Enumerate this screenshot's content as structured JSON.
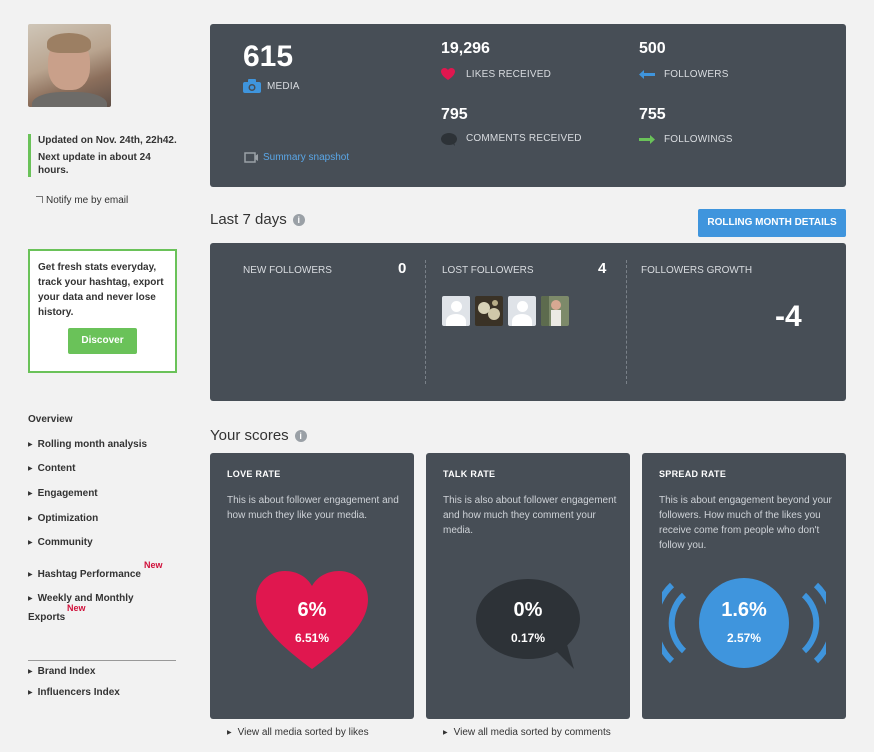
{
  "sidebar": {
    "update_line1": "Updated on Nov. 24th, 22h42.",
    "update_line2": "Next update in about 24 hours.",
    "notify_label": "Notify me by email",
    "promo_text": "Get fresh stats everyday, track your hashtag, export your data and never lose history.",
    "promo_button": "Discover",
    "nav_title": "Overview",
    "nav_items": [
      "Rolling month analysis",
      "Content",
      "Engagement",
      "Optimization",
      "Community",
      "Hashtag Performance",
      "Weekly and Monthly",
      "Exports",
      "Brand Index",
      "Influencers Index"
    ],
    "new_badge": "New"
  },
  "stats": {
    "media_count": "615",
    "media_label": "MEDIA",
    "likes_count": "19,296",
    "likes_label": "LIKES RECEIVED",
    "comments_count": "795",
    "comments_label": "COMMENTS RECEIVED",
    "followers_count": "500",
    "followers_label": "FOLLOWERS",
    "followings_count": "755",
    "followings_label": "FOLLOWINGS",
    "snapshot_link": "Summary snapshot"
  },
  "week": {
    "title": "Last 7 days",
    "rolling_button": "ROLLING MONTH DETAILS",
    "new_followers_label": "NEW FOLLOWERS",
    "new_followers_count": "0",
    "lost_followers_label": "LOST FOLLOWERS",
    "lost_followers_count": "4",
    "growth_label": "FOLLOWERS GROWTH",
    "growth_value": "-4"
  },
  "scores": {
    "title": "Your scores",
    "love": {
      "title": "LOVE RATE",
      "desc": "This is about follower engagement and how much they like your media.",
      "main": "6%",
      "sub": "6.51%",
      "link": "View all media sorted by likes"
    },
    "talk": {
      "title": "TALK RATE",
      "desc": "This is also about follower engagement and how much they comment your media.",
      "main": "0%",
      "sub": "0.17%",
      "link": "View all media sorted by comments"
    },
    "spread": {
      "title": "SPREAD RATE",
      "desc": "This is about engagement beyond your followers. How much of the likes you receive come from people who don't follow you.",
      "main": "1.6%",
      "sub": "2.57%"
    }
  },
  "colors": {
    "panel": "#474e56",
    "accent_green": "#6ac259",
    "accent_blue": "#3f95dd",
    "love_pink": "#e0174f",
    "new_red": "#d0103a"
  },
  "icons": [
    "camera-icon",
    "heart-icon",
    "comment-icon",
    "arrow-left-icon",
    "arrow-right-icon",
    "snapshot-icon",
    "info-icon"
  ]
}
